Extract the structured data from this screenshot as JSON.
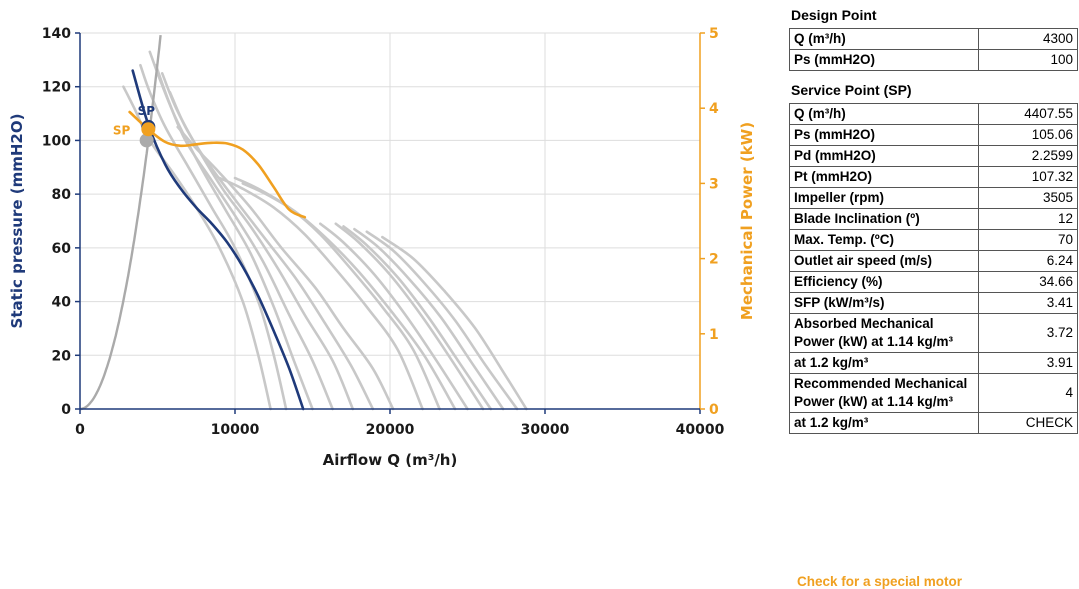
{
  "chart_data": {
    "type": "line",
    "xlabel": "Airflow Q (m³/h)",
    "ylabel": "Static pressure (mmH2O)",
    "y2label": "Mechanical Power (kW)",
    "xlim": [
      0,
      40000
    ],
    "ylim": [
      0,
      140
    ],
    "y2lim": [
      0,
      5
    ],
    "x_ticks": [
      0,
      10000,
      20000,
      30000,
      40000
    ],
    "y_ticks": [
      0,
      20,
      40,
      60,
      80,
      100,
      120,
      140
    ],
    "y2_ticks": [
      0,
      1,
      2,
      3,
      4,
      5
    ],
    "grid": true,
    "colors": {
      "selected": "#1f3a7a",
      "power": "#f0a020",
      "family": "#c8c8c8",
      "system": "#aaaaaa"
    },
    "system_curve": {
      "k": 5.148e-06
    },
    "selected_curve": {
      "x": [
        3400,
        4400,
        5500,
        6500,
        7500,
        8500,
        9500,
        10500,
        11500,
        12500,
        13500,
        14400
      ],
      "y": [
        126,
        106,
        91,
        82,
        75,
        69,
        62,
        53,
        42,
        29,
        15,
        0
      ]
    },
    "power_curve": {
      "x": [
        3200,
        4400,
        5500,
        6500,
        7500,
        8500,
        9500,
        10500,
        11500,
        12500,
        13500,
        14500
      ],
      "y": [
        3.95,
        3.72,
        3.55,
        3.5,
        3.52,
        3.54,
        3.53,
        3.45,
        3.25,
        2.95,
        2.65,
        2.55
      ]
    },
    "family_curves": [
      {
        "x": [
          2800,
          3500,
          4500,
          6000,
          7500,
          9000,
          10500,
          11500,
          12300
        ],
        "y": [
          120,
          112,
          100,
          88,
          75,
          60,
          40,
          20,
          0
        ]
      },
      {
        "x": [
          3900,
          4500,
          5500,
          7000,
          8500,
          10000,
          11500,
          12500,
          13300
        ],
        "y": [
          128,
          118,
          105,
          90,
          75,
          60,
          40,
          20,
          0
        ]
      },
      {
        "x": [
          4500,
          5200,
          6200,
          7800,
          9300,
          11000,
          12500,
          13800,
          15000
        ],
        "y": [
          133,
          122,
          108,
          90,
          75,
          58,
          38,
          18,
          0
        ]
      },
      {
        "x": [
          4900,
          5700,
          6800,
          8500,
          10000,
          11800,
          13500,
          15000,
          16300
        ],
        "y": [
          128,
          115,
          100,
          85,
          72,
          55,
          35,
          18,
          0
        ]
      },
      {
        "x": [
          5300,
          6200,
          7500,
          9200,
          11000,
          12800,
          14500,
          16300,
          17600
        ],
        "y": [
          125,
          112,
          98,
          82,
          68,
          52,
          35,
          18,
          0
        ]
      },
      {
        "x": [
          5800,
          6800,
          8200,
          10000,
          12000,
          14000,
          15800,
          17500,
          18900
        ],
        "y": [
          118,
          105,
          92,
          78,
          63,
          48,
          32,
          16,
          0
        ]
      },
      {
        "x": [
          6300,
          7500,
          9000,
          11000,
          13000,
          15200,
          17000,
          18900,
          20200
        ],
        "y": [
          105,
          97,
          88,
          75,
          60,
          45,
          30,
          15,
          0
        ]
      },
      {
        "x": [
          9000,
          10500,
          12500,
          14500,
          16500,
          18500,
          20500,
          22100
        ],
        "y": [
          86,
          82,
          75,
          65,
          52,
          38,
          22,
          0
        ]
      },
      {
        "x": [
          10000,
          11500,
          13500,
          15500,
          17500,
          19500,
          21500,
          23200
        ],
        "y": [
          86,
          82,
          75,
          65,
          52,
          38,
          22,
          0
        ]
      },
      {
        "x": [
          10500,
          12000,
          14000,
          16000,
          18000,
          20000,
          22200,
          24200
        ],
        "y": [
          84,
          80,
          73,
          63,
          51,
          37,
          20,
          0
        ]
      },
      {
        "x": [
          15500,
          17000,
          19000,
          21000,
          23000,
          25000
        ],
        "y": [
          69,
          62,
          50,
          35,
          18,
          0
        ]
      },
      {
        "x": [
          16500,
          18000,
          20000,
          22000,
          24000,
          26000
        ],
        "y": [
          69,
          62,
          50,
          35,
          18,
          0
        ]
      },
      {
        "x": [
          17000,
          18500,
          20500,
          22500,
          24500,
          26500
        ],
        "y": [
          68,
          61,
          49,
          34,
          17,
          0
        ]
      },
      {
        "x": [
          17700,
          19300,
          21300,
          23300,
          25300,
          27300
        ],
        "y": [
          67,
          60,
          48,
          34,
          17,
          0
        ]
      },
      {
        "x": [
          18500,
          20200,
          22200,
          24200,
          26200,
          28200
        ],
        "y": [
          66,
          59,
          47,
          33,
          16,
          0
        ]
      },
      {
        "x": [
          19500,
          21500,
          23500,
          25500,
          27500,
          28800
        ],
        "y": [
          64,
          56,
          44,
          30,
          12,
          0
        ]
      }
    ],
    "points": [
      {
        "label": "",
        "x": 4300,
        "y": 100,
        "axis": "left",
        "color": "#aaaaaa"
      },
      {
        "label": "SP",
        "x": 4407.55,
        "y": 105.06,
        "axis": "left",
        "color": "#1f3a7a"
      },
      {
        "label": "SP",
        "x": 4407.55,
        "y": 3.72,
        "axis": "right",
        "color": "#f0a020"
      }
    ]
  },
  "design_point": {
    "title": "Design Point",
    "rows": [
      {
        "label": "Q (m³/h)",
        "value": "4300"
      },
      {
        "label": "Ps (mmH2O)",
        "value": "100"
      }
    ]
  },
  "service_point": {
    "title": "Service Point (SP)",
    "rows": [
      {
        "label": "Q (m³/h)",
        "value": "4407.55"
      },
      {
        "label": "Ps (mmH2O)",
        "value": "105.06"
      },
      {
        "label": "Pd (mmH2O)",
        "value": "2.2599"
      },
      {
        "label": "Pt (mmH2O)",
        "value": "107.32"
      },
      {
        "label": "Impeller (rpm)",
        "value": "3505"
      },
      {
        "label": "Blade Inclination (º)",
        "value": "12"
      },
      {
        "label": "Max. Temp. (ºC)",
        "value": "70"
      },
      {
        "label": "Outlet air speed (m/s)",
        "value": "6.24"
      },
      {
        "label": "Efficiency (%)",
        "value": "34.66"
      },
      {
        "label": "SFP (kW/m³/s)",
        "value": "3.41"
      },
      {
        "label": "Absorbed Mechanical Power (kW) at 1.14 kg/m³",
        "value": "3.72"
      },
      {
        "label": "at 1.2 kg/m³",
        "value": "3.91"
      },
      {
        "label": "Recommended Mechanical Power (kW) at 1.14 kg/m³",
        "value": "4"
      },
      {
        "label": "at 1.2 kg/m³",
        "value": "CHECK"
      }
    ]
  },
  "check_note": "Check for a special motor"
}
